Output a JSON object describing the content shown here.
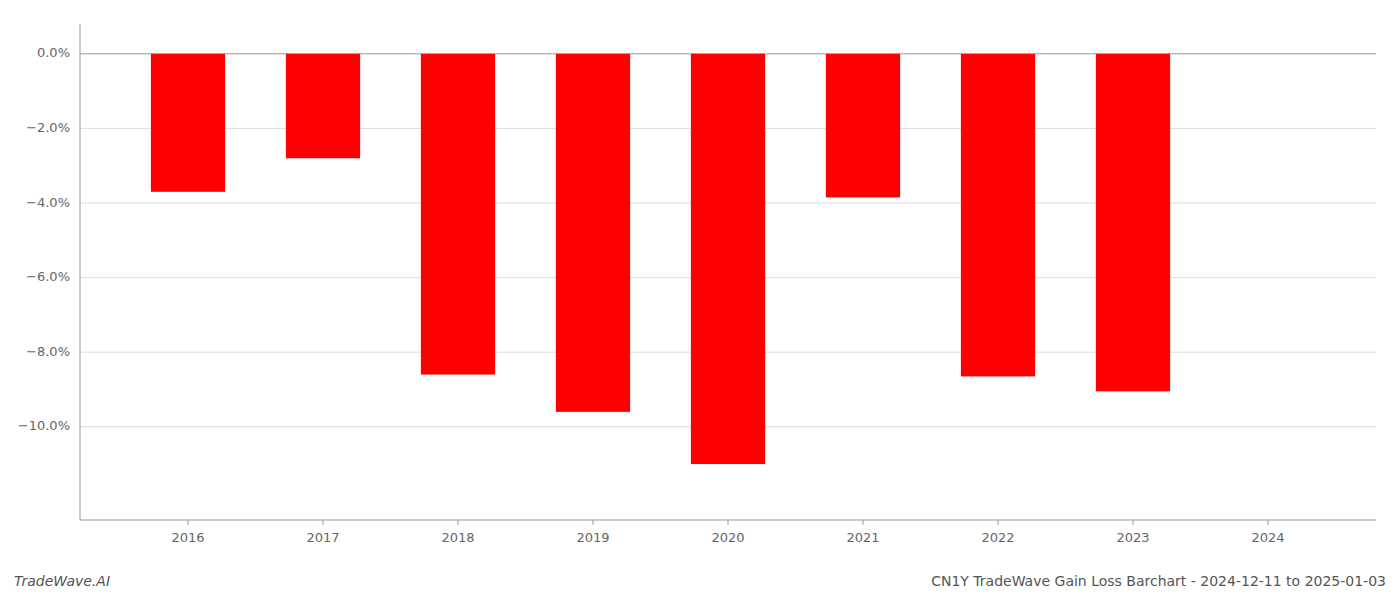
{
  "chart_data": {
    "type": "bar",
    "title": "CN1Y TradeWave Gain Loss Barchart - 2024-12-11 to 2025-01-03",
    "annotations": [
      "TradeWave.AI"
    ],
    "x": [
      2016,
      2017,
      2018,
      2019,
      2020,
      2021,
      2022,
      2023
    ],
    "values": [
      -3.7,
      -2.8,
      -8.6,
      -9.6,
      -11.0,
      -3.85,
      -8.65,
      -9.05
    ],
    "color": "#ff0000",
    "xlim": [
      2015.2,
      2024.8
    ],
    "xticks": [
      2016,
      2017,
      2018,
      2019,
      2020,
      2021,
      2022,
      2023,
      2024
    ],
    "ylim": [
      -12.5,
      0.8
    ],
    "yticks": [
      {
        "value": 0.0,
        "label": "0.0%"
      },
      {
        "value": -2.0,
        "label": "−2.0%"
      },
      {
        "value": -4.0,
        "label": "−4.0%"
      },
      {
        "value": -6.0,
        "label": "−6.0%"
      },
      {
        "value": -8.0,
        "label": "−8.0%"
      },
      {
        "value": -10.0,
        "label": "−10.0%"
      }
    ],
    "grid": true
  }
}
